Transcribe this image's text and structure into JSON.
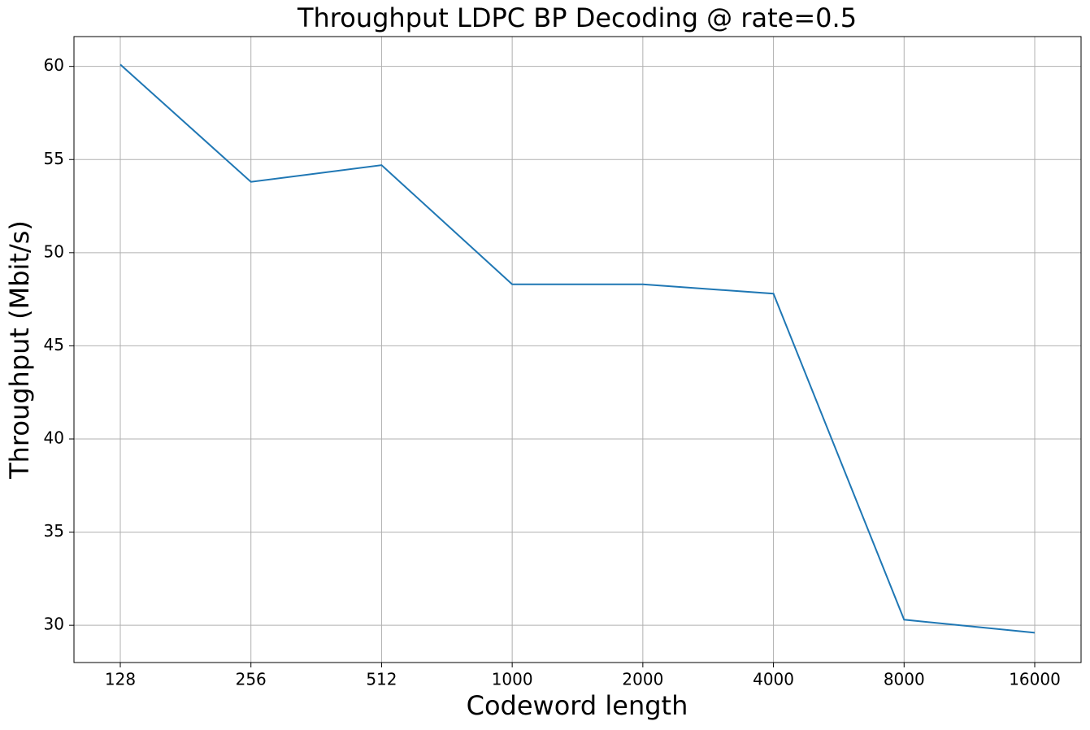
{
  "chart_data": {
    "type": "line",
    "title": "Throughput LDPC BP Decoding @ rate=0.5",
    "x_label": "Codeword length",
    "y_label": "Throughput (Mbit/s)",
    "categories": [
      "128",
      "256",
      "512",
      "1000",
      "2000",
      "4000",
      "8000",
      "16000"
    ],
    "series": [
      {
        "name": "Throughput",
        "color": "#1f77b4",
        "values": [
          60.1,
          53.8,
          54.7,
          48.3,
          48.3,
          47.8,
          30.3,
          29.6
        ]
      }
    ],
    "ylim": [
      28,
      61.6
    ],
    "yticks": [
      30,
      35,
      40,
      45,
      50,
      55,
      60
    ],
    "grid": true
  }
}
